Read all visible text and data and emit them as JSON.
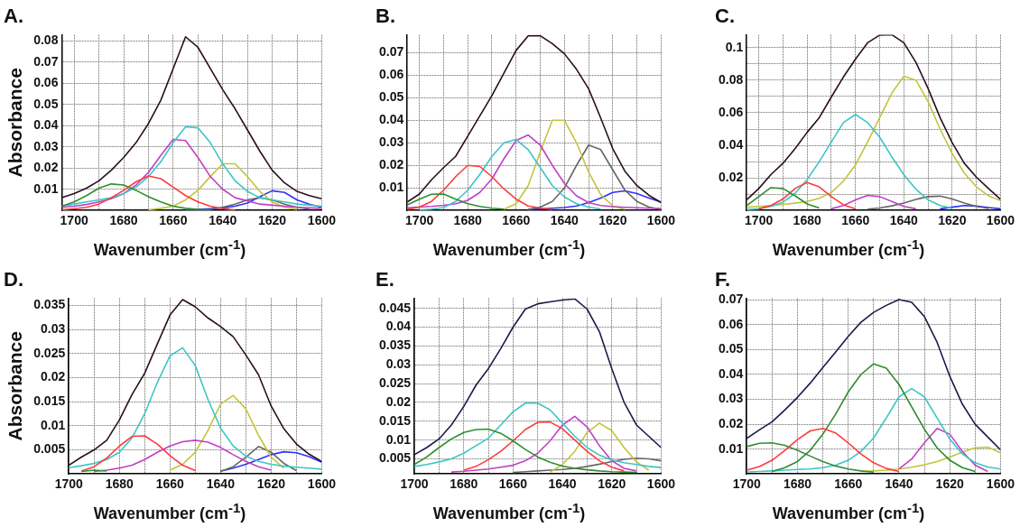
{
  "chart_data": [
    {
      "type": "line",
      "title": "A.",
      "xlabel": "Wavenumber (cm$^{-1}$)",
      "ylabel": "Absorbance",
      "grid": true,
      "marker": "none",
      "line_style": "solid",
      "xlim": [
        1705,
        1600
      ],
      "xticks": [
        1700,
        {
          "value": 1690,
          "label": null
        },
        1680,
        {
          "value": 1670,
          "label": null
        },
        1660,
        {
          "value": 1650,
          "label": null
        },
        1640,
        {
          "value": 1630,
          "label": null
        },
        1620,
        {
          "value": 1610,
          "label": null
        },
        1600
      ],
      "ylim": [
        0,
        0.083
      ],
      "yticks": [
        0.01,
        0.02,
        0.03,
        0.04,
        0.05,
        0.06,
        0.07,
        0.08
      ],
      "x": [
        1705,
        1700,
        1695,
        1690,
        1685,
        1680,
        1675,
        1670,
        1665,
        1660,
        1655,
        1650,
        1645,
        1640,
        1635,
        1630,
        1625,
        1620,
        1615,
        1610,
        1605,
        1600
      ],
      "series": [
        {
          "color": "#2b0f1f",
          "values": [
            0.006,
            0.008,
            0.0105,
            0.014,
            0.019,
            0.025,
            0.032,
            0.041,
            0.052,
            0.067,
            0.082,
            0.077,
            0.067,
            0.057,
            0.048,
            0.038,
            0.028,
            0.019,
            0.013,
            0.009,
            0.007,
            0.0055
          ]
        },
        {
          "color": "#2f8f2f",
          "values": [
            0.002,
            0.004,
            0.007,
            0.0105,
            0.0125,
            0.012,
            0.0095,
            0.0065,
            0.004,
            0.002,
            0.001,
            0.0005,
            0.0003,
            null,
            null,
            null,
            null,
            null,
            null,
            null,
            null,
            null
          ]
        },
        {
          "color": "#ff3b3b",
          "values": [
            0.0003,
            0.0008,
            0.0015,
            0.003,
            0.006,
            0.0095,
            0.0135,
            0.0163,
            0.015,
            0.011,
            0.007,
            0.004,
            0.002,
            0.0008,
            0.0003,
            null,
            null,
            null,
            null,
            null,
            null,
            null
          ]
        },
        {
          "color": "#3cc6c6",
          "values": [
            0.002,
            0.003,
            0.004,
            0.005,
            0.006,
            0.008,
            0.011,
            0.016,
            0.023,
            0.032,
            0.0395,
            0.039,
            0.032,
            0.022,
            0.014,
            0.009,
            0.006,
            0.005,
            0.004,
            0.003,
            0.0025,
            0.002
          ]
        },
        {
          "color": "#c040c8",
          "values": [
            0.0015,
            0.002,
            0.0028,
            0.004,
            0.0055,
            0.008,
            0.012,
            0.018,
            0.026,
            0.0335,
            0.033,
            0.025,
            0.016,
            0.01,
            0.006,
            0.0045,
            0.003,
            0.0025,
            0.002,
            0.0015,
            0.0012,
            0.001
          ]
        },
        {
          "color": "#c4c43a",
          "values": [
            null,
            null,
            null,
            null,
            null,
            null,
            null,
            0.0003,
            0.001,
            0.002,
            0.005,
            0.0095,
            0.016,
            0.022,
            0.022,
            0.016,
            0.009,
            0.004,
            0.0015,
            0.0005,
            null,
            null
          ]
        },
        {
          "color": "#666666",
          "values": [
            null,
            null,
            null,
            null,
            null,
            null,
            null,
            null,
            null,
            null,
            null,
            null,
            0.0005,
            0.0015,
            0.003,
            0.005,
            0.006,
            0.005,
            0.003,
            0.0015,
            0.0006,
            null
          ]
        },
        {
          "color": "#3030ff",
          "values": [
            null,
            null,
            null,
            null,
            null,
            null,
            null,
            null,
            null,
            null,
            0.0003,
            0.0005,
            0.0008,
            0.0012,
            0.002,
            0.0035,
            0.0065,
            0.0093,
            0.0085,
            0.005,
            0.003,
            0.0015
          ]
        }
      ]
    },
    {
      "type": "line",
      "title": "B.",
      "xlabel": "Wavenumber (cm$^{-1}$)",
      "grid": true,
      "marker": "none",
      "line_style": "solid",
      "xlim": [
        1705,
        1600
      ],
      "xticks": [
        1700,
        {
          "value": 1690,
          "label": null
        },
        1680,
        {
          "value": 1670,
          "label": null
        },
        1660,
        {
          "value": 1650,
          "label": null
        },
        1640,
        {
          "value": 1630,
          "label": null
        },
        1620,
        {
          "value": 1610,
          "label": null
        },
        1600
      ],
      "ylim": [
        0,
        0.078
      ],
      "yticks": [
        0.01,
        0.02,
        0.03,
        0.04,
        0.05,
        0.06,
        0.07
      ],
      "x": [
        1705,
        1700,
        1695,
        1690,
        1685,
        1680,
        1675,
        1670,
        1665,
        1660,
        1655,
        1650,
        1645,
        1640,
        1635,
        1630,
        1625,
        1620,
        1615,
        1610,
        1605,
        1600
      ],
      "series": [
        {
          "color": "#2b0f1f",
          "values": [
            0.0038,
            0.0073,
            0.0136,
            0.019,
            0.024,
            0.033,
            0.042,
            0.051,
            0.061,
            0.071,
            0.0775,
            0.0775,
            0.074,
            0.0695,
            0.0626,
            0.054,
            0.041,
            0.0274,
            0.0174,
            0.011,
            0.0067,
            0.0035
          ]
        },
        {
          "color": "#2f8f2f",
          "values": [
            0.0025,
            0.005,
            0.0072,
            0.0073,
            0.005,
            0.003,
            0.0018,
            0.001,
            0.0006,
            null,
            null,
            null,
            null,
            null,
            null,
            null,
            null,
            null,
            null,
            null,
            null,
            null
          ]
        },
        {
          "color": "#ff3b3b",
          "values": [
            0.0005,
            0.0015,
            0.004,
            0.009,
            0.015,
            0.02,
            0.0195,
            0.015,
            0.0095,
            0.005,
            0.002,
            0.001,
            0.0005,
            null,
            null,
            null,
            null,
            null,
            null,
            null,
            null,
            null
          ]
        },
        {
          "color": "#3cc6c6",
          "values": [
            null,
            0.0003,
            0.0006,
            0.0013,
            0.004,
            0.009,
            0.016,
            0.024,
            0.03,
            0.0315,
            0.027,
            0.019,
            0.011,
            0.006,
            0.003,
            0.0015,
            0.0007,
            null,
            null,
            null,
            null,
            null
          ]
        },
        {
          "color": "#c040c8",
          "values": [
            0.0012,
            0.0015,
            0.0018,
            0.0023,
            0.003,
            0.0045,
            0.008,
            0.014,
            0.023,
            0.031,
            0.0335,
            0.029,
            0.02,
            0.012,
            0.0065,
            0.0035,
            0.0022,
            0.0017,
            0.0014,
            0.0012,
            0.001,
            0.0009
          ]
        },
        {
          "color": "#c4c43a",
          "values": [
            null,
            null,
            null,
            null,
            null,
            null,
            null,
            null,
            0.0005,
            0.003,
            0.011,
            0.026,
            0.04,
            0.04,
            0.03,
            0.017,
            0.007,
            0.002,
            0.0005,
            null,
            null,
            null
          ]
        },
        {
          "color": "#666666",
          "values": [
            null,
            null,
            null,
            null,
            null,
            null,
            null,
            null,
            null,
            null,
            0.0005,
            0.0015,
            0.004,
            0.01,
            0.02,
            0.029,
            0.027,
            0.018,
            0.009,
            0.004,
            0.0015,
            0.0005
          ]
        },
        {
          "color": "#3030ff",
          "values": [
            null,
            null,
            null,
            null,
            null,
            null,
            null,
            null,
            null,
            null,
            0.0005,
            0.0007,
            0.001,
            0.0013,
            0.002,
            0.0035,
            0.0055,
            0.008,
            0.0087,
            0.0075,
            0.0055,
            0.0037
          ]
        }
      ]
    },
    {
      "type": "line",
      "title": "C.",
      "xlabel": "Wavenumber (cm$^{-1}$)",
      "grid": true,
      "marker": "none",
      "line_style": "solid",
      "xlim": [
        1705,
        1600
      ],
      "xticks": [
        1700,
        {
          "value": 1690,
          "label": null
        },
        1680,
        {
          "value": 1670,
          "label": null
        },
        1660,
        {
          "value": 1650,
          "label": null
        },
        1640,
        {
          "value": 1630,
          "label": null
        },
        1620,
        {
          "value": 1610,
          "label": null
        },
        1600
      ],
      "ylim": [
        0,
        0.108
      ],
      "yticks": [
        {
          "value": 0.01,
          "label": null
        },
        0.02,
        {
          "value": 0.03,
          "label": null
        },
        0.04,
        {
          "value": 0.05,
          "label": null
        },
        0.06,
        {
          "value": 0.07,
          "label": null
        },
        0.08,
        {
          "value": 0.09,
          "label": null
        },
        0.1
      ],
      "x": [
        1705,
        1700,
        1695,
        1690,
        1685,
        1680,
        1675,
        1670,
        1665,
        1660,
        1655,
        1650,
        1645,
        1640,
        1635,
        1630,
        1625,
        1620,
        1615,
        1610,
        1605,
        1600
      ],
      "series": [
        {
          "color": "#2b0f1f",
          "values": [
            0.0065,
            0.0135,
            0.022,
            0.029,
            0.038,
            0.048,
            0.057,
            0.0697,
            0.082,
            0.093,
            0.103,
            0.1077,
            0.108,
            0.103,
            0.091,
            0.075,
            0.057,
            0.0416,
            0.029,
            0.0205,
            0.0135,
            0.0068
          ]
        },
        {
          "color": "#2f8f2f",
          "values": [
            0.003,
            0.0085,
            0.014,
            0.0135,
            0.009,
            0.004,
            0.0015,
            null,
            null,
            null,
            null,
            null,
            null,
            null,
            null,
            null,
            null,
            null,
            null,
            null,
            null,
            null
          ]
        },
        {
          "color": "#ff3b3b",
          "values": [
            null,
            0.001,
            0.003,
            0.007,
            0.0135,
            0.0172,
            0.0145,
            0.0085,
            0.0035,
            0.001,
            null,
            null,
            null,
            null,
            null,
            null,
            null,
            null,
            null,
            null,
            null,
            null
          ]
        },
        {
          "color": "#3cc6c6",
          "values": [
            0.0005,
            0.001,
            0.0025,
            0.005,
            0.0105,
            0.019,
            0.03,
            0.042,
            0.054,
            0.059,
            0.054,
            0.045,
            0.033,
            0.022,
            0.013,
            0.0065,
            0.003,
            0.0013,
            null,
            null,
            null,
            null
          ]
        },
        {
          "color": "#c4c43a",
          "values": [
            0.002,
            0.0025,
            0.003,
            0.0037,
            0.0045,
            0.0055,
            0.0075,
            0.011,
            0.018,
            0.028,
            0.042,
            0.057,
            0.072,
            0.0825,
            0.08,
            0.067,
            0.05,
            0.035,
            0.023,
            0.0145,
            0.009,
            0.006
          ]
        },
        {
          "color": "#c040c8",
          "values": [
            null,
            null,
            null,
            null,
            null,
            null,
            null,
            0.001,
            0.003,
            0.0065,
            0.0093,
            0.0085,
            0.0055,
            0.0025,
            0.001,
            null,
            null,
            null,
            null,
            null,
            null,
            null
          ]
        },
        {
          "color": "#666666",
          "values": [
            null,
            null,
            null,
            null,
            null,
            null,
            null,
            null,
            null,
            null,
            0.0008,
            0.0015,
            0.0028,
            0.0045,
            0.0068,
            0.0085,
            0.0088,
            0.007,
            0.0045,
            0.0025,
            0.0012,
            null
          ]
        },
        {
          "color": "#3030ff",
          "values": [
            null,
            null,
            null,
            null,
            null,
            null,
            null,
            null,
            null,
            null,
            null,
            null,
            null,
            null,
            null,
            null,
            0.001,
            0.002,
            0.003,
            0.0027,
            0.0018,
            0.001
          ]
        }
      ]
    },
    {
      "type": "line",
      "title": "D.",
      "xlabel": "Wavenumber (cm$^{-1}$)",
      "ylabel": "Absorbance",
      "grid": true,
      "marker": "none",
      "line_style": "solid",
      "xlim": [
        1700,
        1600
      ],
      "xticks": [
        1700,
        {
          "value": 1690,
          "label": null
        },
        1680,
        {
          "value": 1670,
          "label": null
        },
        1660,
        {
          "value": 1650,
          "label": null
        },
        1640,
        {
          "value": 1630,
          "label": null
        },
        1620,
        {
          "value": 1610,
          "label": null
        },
        1600
      ],
      "ylim": [
        0,
        0.0365
      ],
      "yticks": [
        0.005,
        0.01,
        0.015,
        0.02,
        0.025,
        0.03,
        0.035
      ],
      "x": [
        1700,
        1695,
        1690,
        1685,
        1680,
        1675,
        1670,
        1665,
        1660,
        1655,
        1650,
        1645,
        1640,
        1635,
        1630,
        1625,
        1620,
        1615,
        1610,
        1605,
        1600
      ],
      "series": [
        {
          "color": "#2b0f1f",
          "values": [
            0.0018,
            0.0035,
            0.005,
            0.007,
            0.0112,
            0.0165,
            0.0209,
            0.027,
            0.033,
            0.0362,
            0.0347,
            0.0324,
            0.0306,
            0.0285,
            0.0247,
            0.0206,
            0.0141,
            0.0094,
            0.0062,
            0.0041,
            0.0026
          ]
        },
        {
          "color": "#2f8f2f",
          "values": [
            null,
            0.0005,
            0.0008,
            0.0006,
            null,
            null,
            null,
            null,
            null,
            null,
            null,
            null,
            null,
            null,
            null,
            null,
            null,
            null,
            null,
            null,
            null
          ]
        },
        {
          "color": "#ff3b3b",
          "values": [
            null,
            0.0006,
            0.0015,
            0.0033,
            0.0058,
            0.0078,
            0.0079,
            0.0062,
            0.0038,
            0.0018,
            0.0007,
            null,
            null,
            null,
            null,
            null,
            null,
            null,
            null,
            null,
            null
          ]
        },
        {
          "color": "#3cc6c6",
          "values": [
            0.0013,
            0.0017,
            0.0022,
            0.003,
            0.0045,
            0.0075,
            0.0125,
            0.019,
            0.0245,
            0.0262,
            0.0225,
            0.0155,
            0.0095,
            0.0058,
            0.0037,
            0.0026,
            0.002,
            0.0016,
            0.0014,
            0.0012,
            0.001
          ]
        },
        {
          "color": "#c040c8",
          "values": [
            null,
            null,
            0.0005,
            0.0008,
            0.0012,
            0.0018,
            0.003,
            0.0045,
            0.0058,
            0.0067,
            0.007,
            0.0066,
            0.0055,
            0.004,
            0.0026,
            0.0015,
            0.0008,
            null,
            null,
            null,
            null
          ]
        },
        {
          "color": "#c4c43a",
          "values": [
            null,
            null,
            null,
            null,
            null,
            null,
            null,
            null,
            0.0008,
            0.002,
            0.0045,
            0.009,
            0.0145,
            0.0163,
            0.0135,
            0.008,
            0.0035,
            0.0012,
            null,
            null,
            null
          ]
        },
        {
          "color": "#666666",
          "values": [
            null,
            null,
            null,
            null,
            null,
            null,
            null,
            null,
            null,
            null,
            null,
            null,
            0.0005,
            0.0015,
            0.0035,
            0.0057,
            0.0045,
            0.0022,
            0.0007,
            null,
            null
          ]
        },
        {
          "color": "#3030ff",
          "values": [
            null,
            null,
            null,
            null,
            null,
            null,
            null,
            null,
            null,
            null,
            null,
            null,
            0.0006,
            0.0012,
            0.002,
            0.003,
            0.004,
            0.0046,
            0.0044,
            0.0036,
            0.0024
          ]
        }
      ]
    },
    {
      "type": "line",
      "title": "E.",
      "xlabel": "Wavenumber (cm$^{-1}$)",
      "grid": true,
      "marker": "none",
      "line_style": "solid",
      "xlim": [
        1700,
        1600
      ],
      "xticks": [
        1700,
        {
          "value": 1690,
          "label": null
        },
        1680,
        {
          "value": 1670,
          "label": null
        },
        1660,
        {
          "value": 1650,
          "label": null
        },
        1640,
        {
          "value": 1630,
          "label": null
        },
        1620,
        {
          "value": 1610,
          "label": null
        },
        1600
      ],
      "ylim": [
        0.001,
        0.0477
      ],
      "yticks": [
        0.005,
        0.01,
        0.015,
        0.02,
        0.025,
        0.03,
        0.035,
        0.04,
        0.045
      ],
      "x": [
        1700,
        1695,
        1690,
        1685,
        1680,
        1675,
        1670,
        1665,
        1660,
        1655,
        1650,
        1645,
        1640,
        1635,
        1630,
        1625,
        1620,
        1615,
        1610,
        1605,
        1600
      ],
      "series": [
        {
          "color": "#1b1b4b",
          "values": [
            0.0061,
            0.008,
            0.0103,
            0.014,
            0.0189,
            0.0246,
            0.029,
            0.0343,
            0.04,
            0.0448,
            0.0462,
            0.0467,
            0.0472,
            0.0475,
            0.0448,
            0.0388,
            0.029,
            0.02,
            0.014,
            0.011,
            0.008
          ]
        },
        {
          "color": "#2f8f2f",
          "values": [
            0.0035,
            0.0055,
            0.008,
            0.0103,
            0.012,
            0.0128,
            0.0129,
            0.0118,
            0.0098,
            0.0075,
            0.0055,
            0.0041,
            0.0031,
            0.0025,
            0.0021,
            0.0018,
            0.0016,
            0.0015,
            0.0014,
            null,
            null
          ]
        },
        {
          "color": "#3cc6c6",
          "values": [
            0.003,
            0.0035,
            0.0042,
            0.005,
            0.0065,
            0.0085,
            0.0105,
            0.014,
            0.0175,
            0.0198,
            0.0198,
            0.018,
            0.0145,
            0.011,
            0.008,
            0.006,
            0.0047,
            0.004,
            0.0035,
            0.003,
            0.0027
          ]
        },
        {
          "color": "#ff3b3b",
          "values": [
            null,
            null,
            null,
            null,
            0.002,
            0.003,
            0.0048,
            0.007,
            0.0098,
            0.0128,
            0.0147,
            0.0148,
            0.013,
            0.01,
            0.007,
            0.0045,
            0.0028,
            0.0018,
            null,
            null,
            null
          ]
        },
        {
          "color": "#c040c8",
          "values": [
            null,
            null,
            null,
            0.0015,
            0.0017,
            0.002,
            0.0023,
            0.0028,
            0.0033,
            0.0045,
            0.0065,
            0.0098,
            0.014,
            0.0163,
            0.0135,
            0.0085,
            0.0045,
            0.0025,
            0.0018,
            null,
            null
          ]
        },
        {
          "color": "#c4c43a",
          "values": [
            null,
            null,
            null,
            null,
            null,
            null,
            null,
            null,
            null,
            null,
            null,
            0.0015,
            0.0035,
            0.007,
            0.012,
            0.0145,
            0.0125,
            0.008,
            0.0042,
            0.002,
            null
          ]
        },
        {
          "color": "#666666",
          "values": [
            null,
            null,
            null,
            null,
            null,
            null,
            null,
            null,
            0.0014,
            0.0016,
            0.0018,
            0.002,
            0.0022,
            0.0025,
            0.003,
            0.0036,
            0.0043,
            0.0049,
            0.0052,
            0.005,
            0.0045
          ]
        }
      ]
    },
    {
      "type": "line",
      "title": "F.",
      "xlabel": "Wavenumber (cm$^{-1}$)",
      "grid": true,
      "marker": "none",
      "line_style": "solid",
      "xlim": [
        1700,
        1600
      ],
      "xticks": [
        1700,
        {
          "value": 1690,
          "label": null
        },
        1680,
        {
          "value": 1670,
          "label": null
        },
        1660,
        {
          "value": 1650,
          "label": null
        },
        1640,
        {
          "value": 1630,
          "label": null
        },
        1620,
        {
          "value": 1610,
          "label": null
        },
        1600
      ],
      "ylim": [
        0,
        0.0707
      ],
      "yticks": [
        0.01,
        0.02,
        0.03,
        0.04,
        0.05,
        0.06,
        0.07
      ],
      "x": [
        1700,
        1695,
        1690,
        1685,
        1680,
        1675,
        1670,
        1665,
        1660,
        1655,
        1650,
        1645,
        1640,
        1635,
        1630,
        1625,
        1620,
        1615,
        1610,
        1605,
        1600
      ],
      "series": [
        {
          "color": "#1b1b4b",
          "values": [
            0.0143,
            0.0177,
            0.021,
            0.0257,
            0.0308,
            0.0365,
            0.0428,
            0.049,
            0.0553,
            0.061,
            0.065,
            0.0678,
            0.0701,
            0.069,
            0.0633,
            0.053,
            0.0393,
            0.028,
            0.02,
            0.0148,
            0.0097
          ]
        },
        {
          "color": "#3a8a3a",
          "values": [
            0.011,
            0.0123,
            0.0125,
            0.0115,
            0.0095,
            0.0072,
            0.005,
            0.0032,
            0.002,
            0.0012,
            0.0007,
            null,
            null,
            null,
            null,
            null,
            null,
            null,
            null,
            null,
            null
          ]
        },
        {
          "color": "#ff3b3b",
          "values": [
            0.0015,
            0.003,
            0.0055,
            0.0095,
            0.0138,
            0.0173,
            0.0183,
            0.0165,
            0.0125,
            0.008,
            0.0045,
            0.0022,
            0.001,
            null,
            null,
            null,
            null,
            null,
            null,
            null,
            null
          ]
        },
        {
          "color": "#2e8b2e",
          "values": [
            null,
            null,
            0.001,
            0.0025,
            0.005,
            0.0095,
            0.016,
            0.024,
            0.033,
            0.04,
            0.0443,
            0.0425,
            0.036,
            0.027,
            0.018,
            0.0105,
            0.0055,
            0.0025,
            0.001,
            null,
            null
          ]
        },
        {
          "color": "#3cc6c6",
          "values": [
            0.0008,
            0.001,
            0.0012,
            0.0015,
            0.0018,
            0.002,
            0.0025,
            0.0035,
            0.0055,
            0.009,
            0.0145,
            0.0225,
            0.031,
            0.0343,
            0.031,
            0.0225,
            0.014,
            0.008,
            0.0045,
            0.0028,
            0.002
          ]
        },
        {
          "color": "#c040c8",
          "values": [
            null,
            null,
            null,
            null,
            null,
            null,
            null,
            null,
            null,
            null,
            null,
            null,
            0.002,
            0.006,
            0.0125,
            0.0183,
            0.016,
            0.009,
            0.0035,
            0.001,
            null
          ]
        },
        {
          "color": "#c4c43a",
          "values": [
            null,
            null,
            null,
            null,
            null,
            null,
            null,
            null,
            null,
            0.001,
            0.0012,
            0.0015,
            0.002,
            0.0027,
            0.0037,
            0.005,
            0.0068,
            0.0088,
            0.0105,
            0.0108,
            0.0085
          ]
        }
      ]
    }
  ]
}
